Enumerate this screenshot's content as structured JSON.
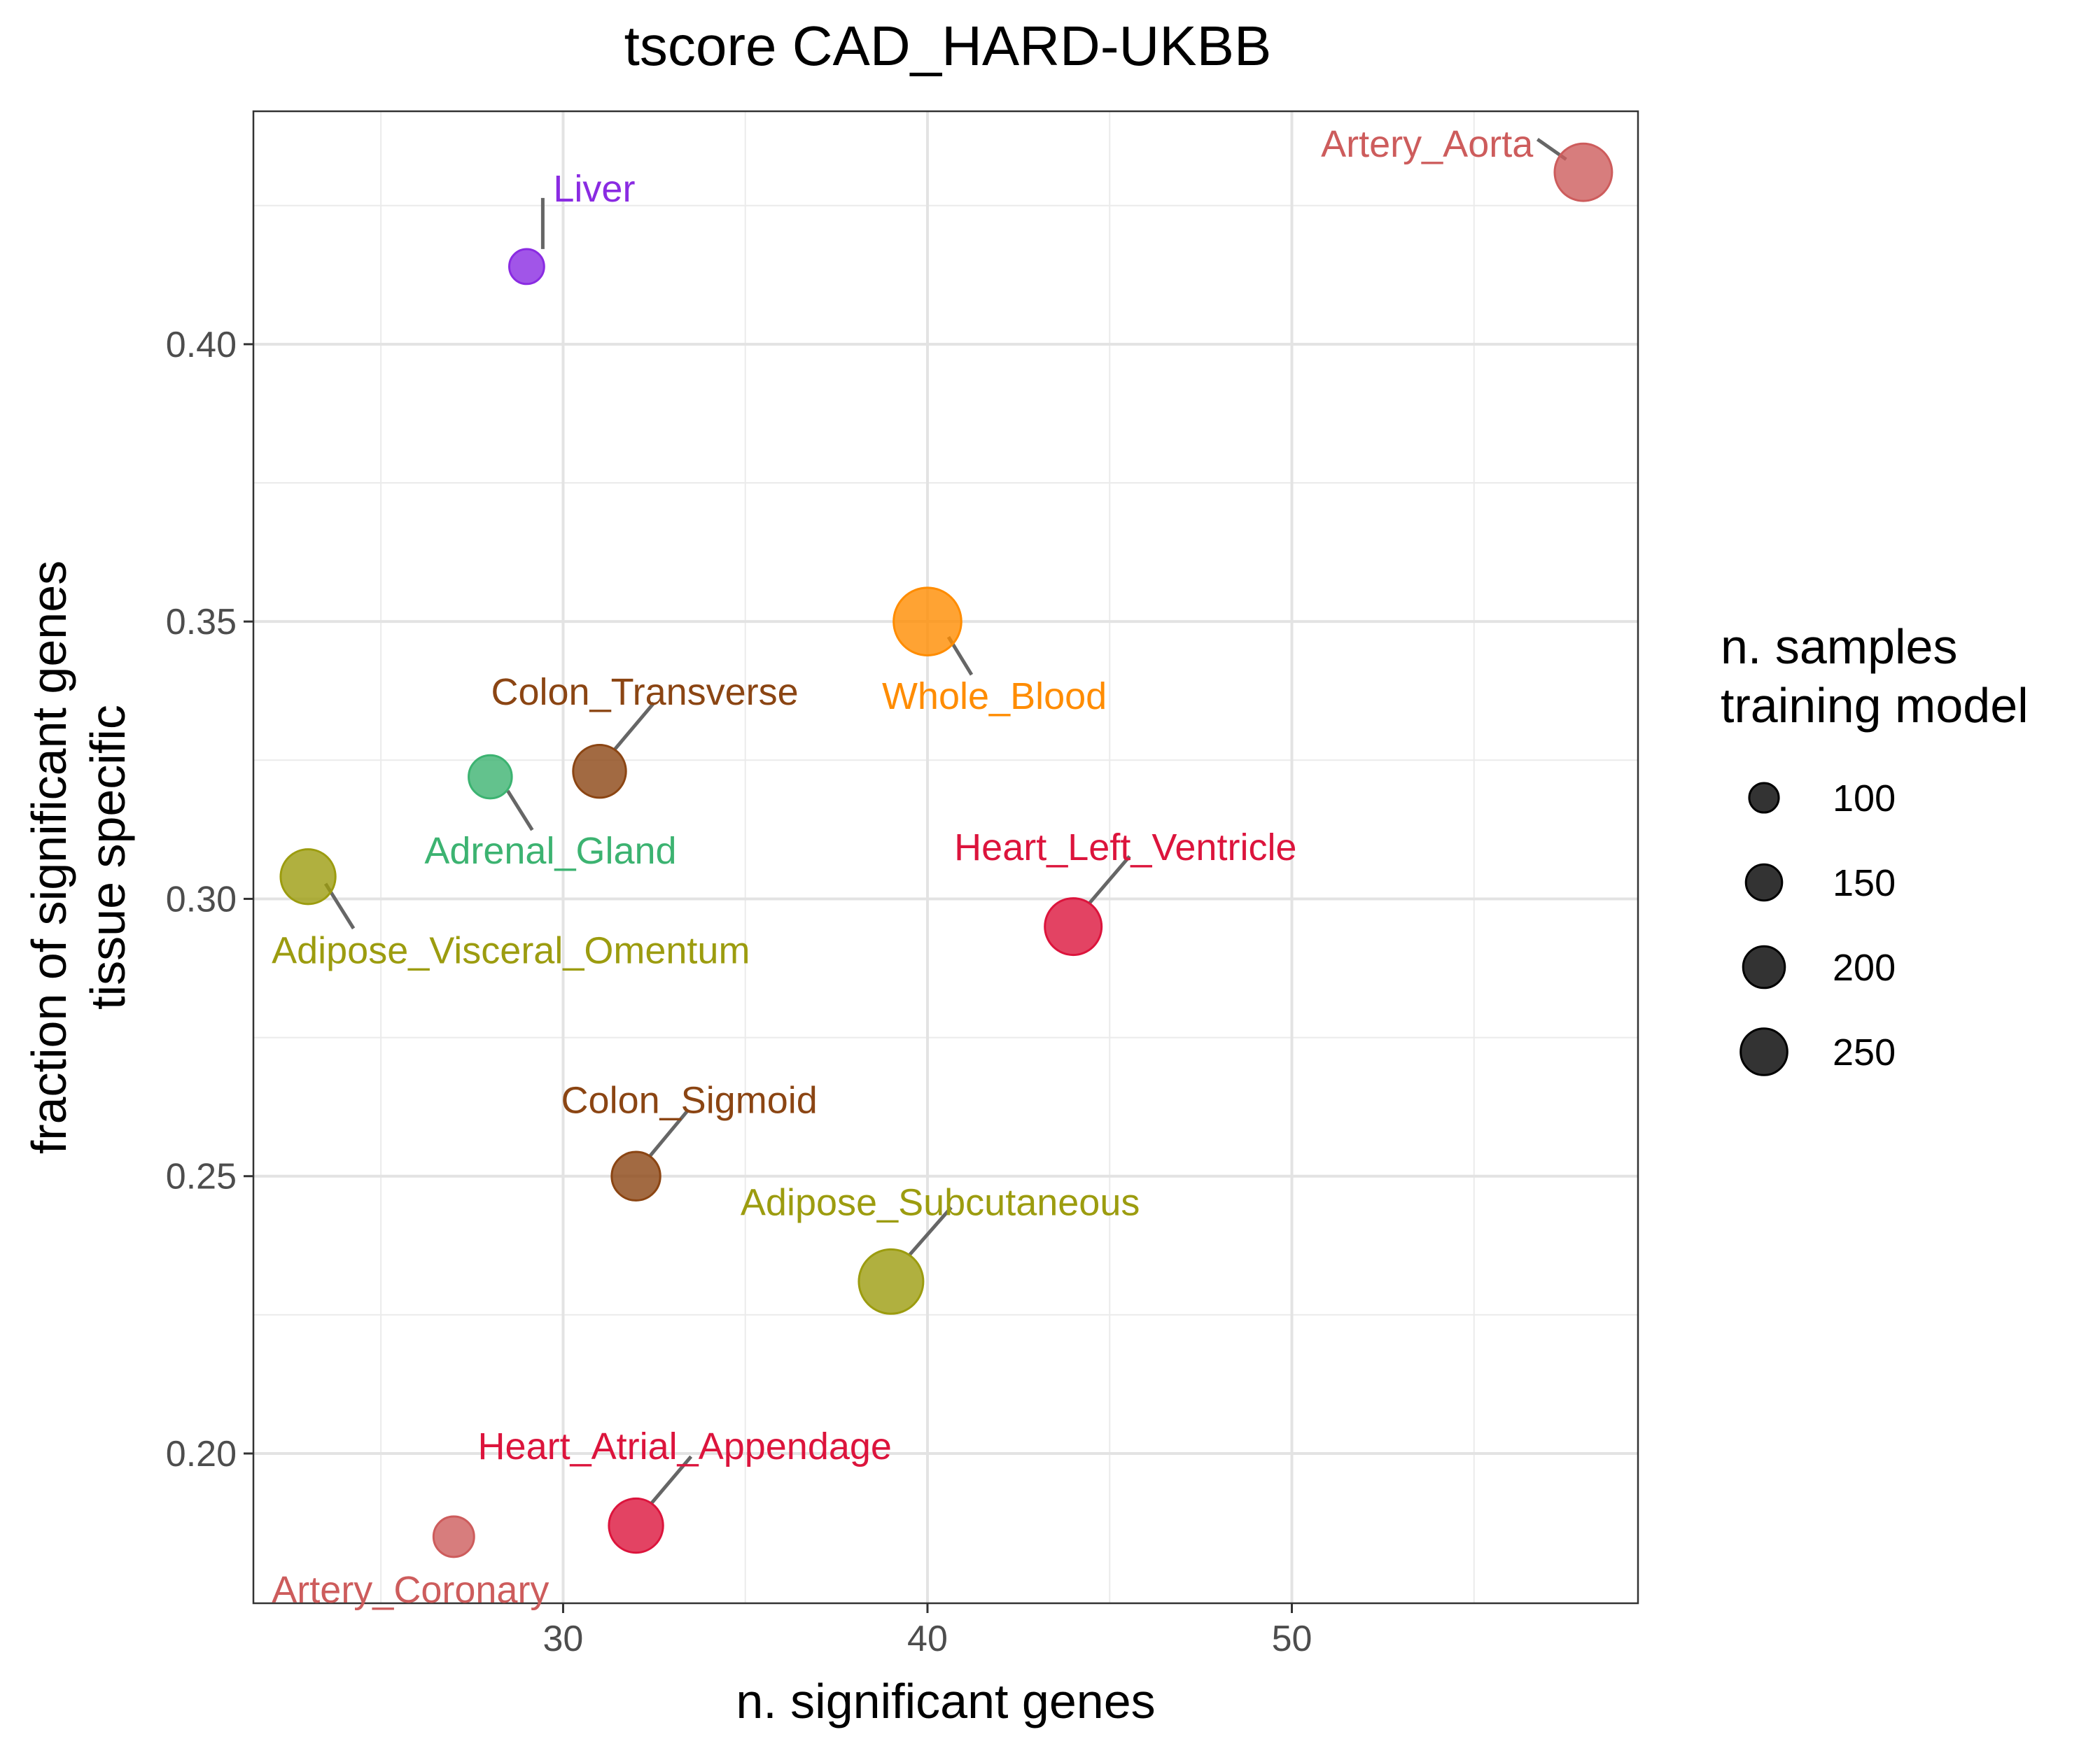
{
  "chart_data": {
    "type": "scatter",
    "title": "tscore CAD_HARD-UKBB",
    "xlabel": "n. significant genes",
    "ylabel_line1": "fraction of significant genes",
    "ylabel_line2": "tissue specific",
    "xlim": [
      21.5,
      59.5
    ],
    "ylim": [
      0.173,
      0.442
    ],
    "x_ticks": [
      30,
      40,
      50
    ],
    "x_tick_labels": [
      "30",
      "40",
      "50"
    ],
    "x_minor_ticks": [
      25,
      35,
      45,
      55
    ],
    "y_ticks": [
      0.2,
      0.25,
      0.3,
      0.35,
      0.4
    ],
    "y_tick_labels": [
      "0.20",
      "0.25",
      "0.30",
      "0.35",
      "0.40"
    ],
    "y_minor_ticks": [
      0.225,
      0.275,
      0.325,
      0.375,
      0.425
    ],
    "grid": true,
    "legend": {
      "title_line1": "n. samples",
      "title_line2": "training model",
      "placement": "right",
      "entries": [
        {
          "label": "100",
          "size": 100
        },
        {
          "label": "150",
          "size": 150
        },
        {
          "label": "200",
          "size": 200
        },
        {
          "label": "250",
          "size": 250
        }
      ]
    },
    "points": [
      {
        "label": "Artery_Aorta",
        "x": 58,
        "y": 0.431,
        "size": 230,
        "color": "#CD5C5C",
        "label_pos": "left"
      },
      {
        "label": "Liver",
        "x": 29,
        "y": 0.414,
        "size": 85,
        "color": "#8A2BE2",
        "label_pos": "top-right"
      },
      {
        "label": "Whole_Blood",
        "x": 40,
        "y": 0.35,
        "size": 320,
        "color": "#FF8C00",
        "label_pos": "bottom-right"
      },
      {
        "label": "Colon_Transverse",
        "x": 31,
        "y": 0.323,
        "size": 195,
        "color": "#8B4513",
        "label_pos": "top-right"
      },
      {
        "label": "Adrenal_Gland",
        "x": 28,
        "y": 0.322,
        "size": 130,
        "color": "#3CB371",
        "label_pos": "bottom-right"
      },
      {
        "label": "Adipose_Visceral_Omentum",
        "x": 23,
        "y": 0.304,
        "size": 210,
        "color": "#9C9C0F",
        "label_pos": "bottom-right"
      },
      {
        "label": "Heart_Left_Ventricle",
        "x": 44,
        "y": 0.295,
        "size": 225,
        "color": "#DC143C",
        "label_pos": "top-right"
      },
      {
        "label": "Colon_Sigmoid",
        "x": 32,
        "y": 0.25,
        "size": 165,
        "color": "#8B4513",
        "label_pos": "top-right"
      },
      {
        "label": "Adipose_Subcutaneous",
        "x": 39,
        "y": 0.231,
        "size": 290,
        "color": "#9C9C0F",
        "label_pos": "top-right"
      },
      {
        "label": "Heart_Atrial_Appendage",
        "x": 32,
        "y": 0.187,
        "size": 205,
        "color": "#DC143C",
        "label_pos": "top-right"
      },
      {
        "label": "Artery_Coronary",
        "x": 27,
        "y": 0.185,
        "size": 115,
        "color": "#CD5C5C",
        "label_pos": "bottom"
      }
    ]
  }
}
